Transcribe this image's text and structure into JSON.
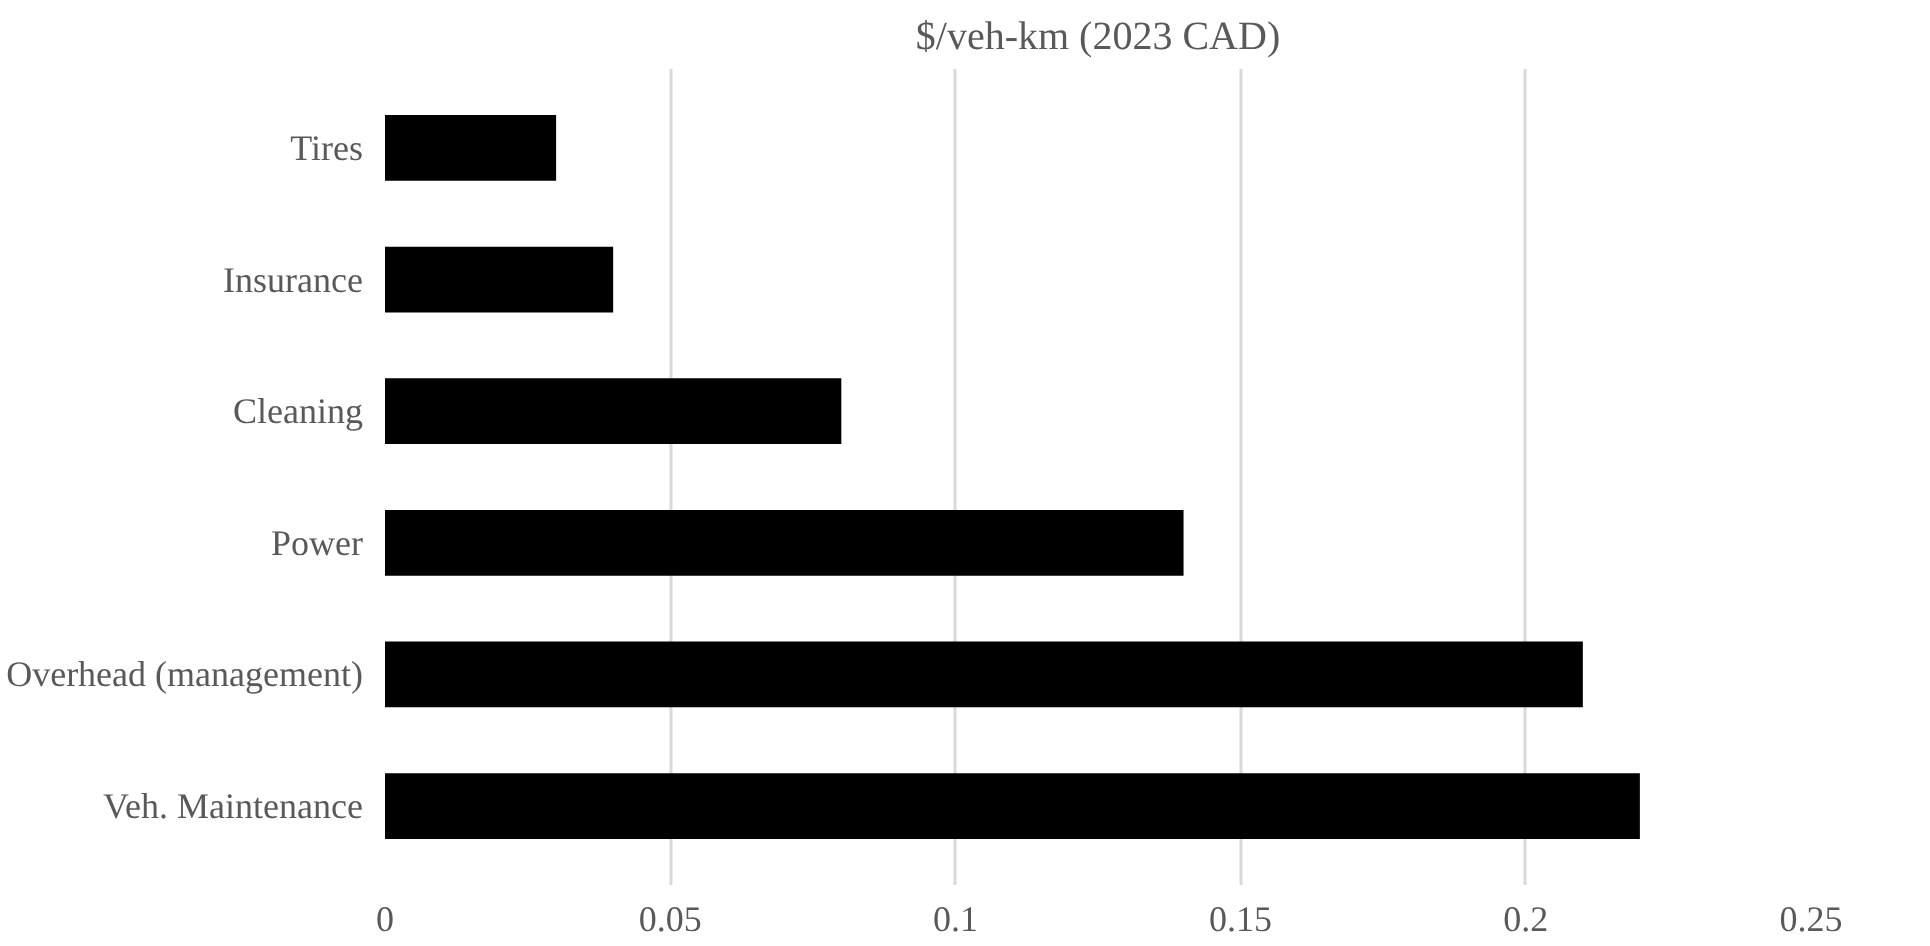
{
  "chart_data": {
    "type": "bar",
    "orientation": "horizontal",
    "title": "$/veh-km (2023 CAD)",
    "categories": [
      "Tires",
      "Insurance",
      "Cleaning",
      "Power",
      "Overhead (management)",
      "Veh. Maintenance"
    ],
    "values": [
      0.03,
      0.04,
      0.08,
      0.14,
      0.21,
      0.22
    ],
    "color": "#000000",
    "xlim": [
      0,
      0.25
    ],
    "xticks": [
      0,
      0.05,
      0.1,
      0.15,
      0.2,
      0.25
    ],
    "grid": "x"
  }
}
